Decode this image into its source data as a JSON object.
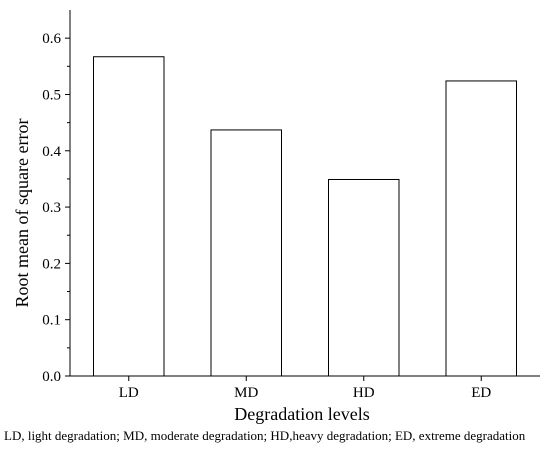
{
  "chart_data": {
    "type": "bar",
    "categories": [
      "LD",
      "MD",
      "HD",
      "ED"
    ],
    "values": [
      0.567,
      0.437,
      0.349,
      0.524
    ],
    "xlabel": "Degradation levels",
    "ylabel": "Root mean of square error",
    "ylim": [
      0,
      0.65
    ],
    "yticks": [
      0.0,
      0.1,
      0.2,
      0.3,
      0.4,
      0.5,
      0.6
    ],
    "ytick_labels": [
      "0.0",
      "0.1",
      "0.2",
      "0.3",
      "0.4",
      "0.5",
      "0.6"
    ],
    "grid": false,
    "legend": "none",
    "footnote": "LD, light degradation; MD, moderate degradation; HD,heavy degradation; ED, extreme degradation",
    "colors": {
      "bar_fill": "#ffffff",
      "bar_stroke": "#000000",
      "axis": "#000000"
    }
  }
}
